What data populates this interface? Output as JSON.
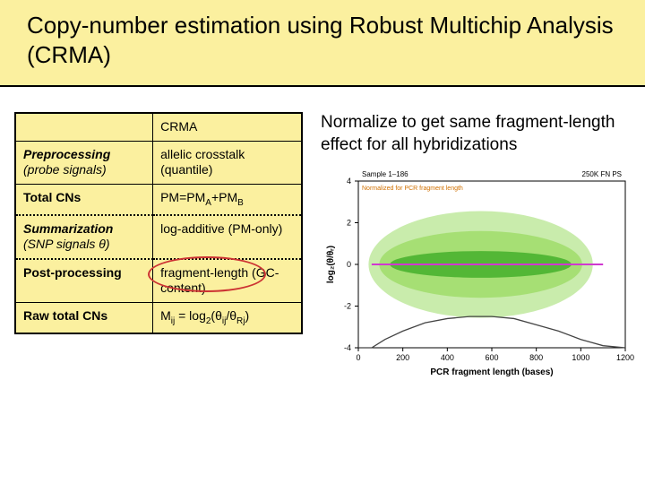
{
  "title": "Copy-number estimation using Robust Multichip Analysis (CRMA)",
  "note": "Normalize to get same fragment-length effect for all hybridizations",
  "table": {
    "header": "CRMA",
    "rows": [
      {
        "label": "Preprocessing",
        "label_sub": "(probe signals)",
        "value": "allelic crosstalk (quantile)",
        "dotted": false,
        "bold": false
      },
      {
        "label": "Total CNs",
        "label_sub": "",
        "value": "PM=PM_A+PM_B",
        "dotted": false,
        "bold": true
      },
      {
        "label": "Summarization",
        "label_sub": "(SNP signals θ)",
        "value": "log-additive (PM-only)",
        "dotted": true,
        "bold": false
      },
      {
        "label": "Post-processing",
        "label_sub": "",
        "value": "fragment-length (GC-content)",
        "dotted": false,
        "bold": true,
        "oval": true
      },
      {
        "label": "Raw total CNs",
        "label_sub": "",
        "value": "M_ij = log₂(θ_ij/θ_Rj)",
        "dotted": false,
        "bold": true
      }
    ]
  },
  "chart": {
    "title": "Sample 1–186",
    "title_fontsize": 8,
    "subtitle_right": "250K FN PS",
    "xlabel": "PCR fragment length (bases)",
    "ylabel": "log₂(θ/θᵣ)",
    "xlim": [
      0,
      1200
    ],
    "xtick_step": 200,
    "ylim": [
      -4,
      4
    ],
    "ytick_step": 2,
    "background": "#ffffff",
    "cloud_color_outer": "#9ddc67",
    "cloud_color_inner": "#4ab330",
    "centerline_color": "#d038d0",
    "axis_color": "#000000",
    "label_fontsize": 9,
    "density_curve": [
      [
        0,
        -4
      ],
      [
        60,
        -4
      ],
      [
        120,
        -3.6
      ],
      [
        200,
        -3.2
      ],
      [
        300,
        -2.8
      ],
      [
        400,
        -2.6
      ],
      [
        500,
        -2.5
      ],
      [
        600,
        -2.5
      ],
      [
        700,
        -2.6
      ],
      [
        800,
        -2.9
      ],
      [
        900,
        -3.2
      ],
      [
        1000,
        -3.6
      ],
      [
        1100,
        -3.9
      ],
      [
        1200,
        -4
      ]
    ]
  },
  "colors": {
    "slide_bg": "#ffffff",
    "accent_bg": "#fbf09f",
    "border": "#000000",
    "oval": "#c33333"
  }
}
